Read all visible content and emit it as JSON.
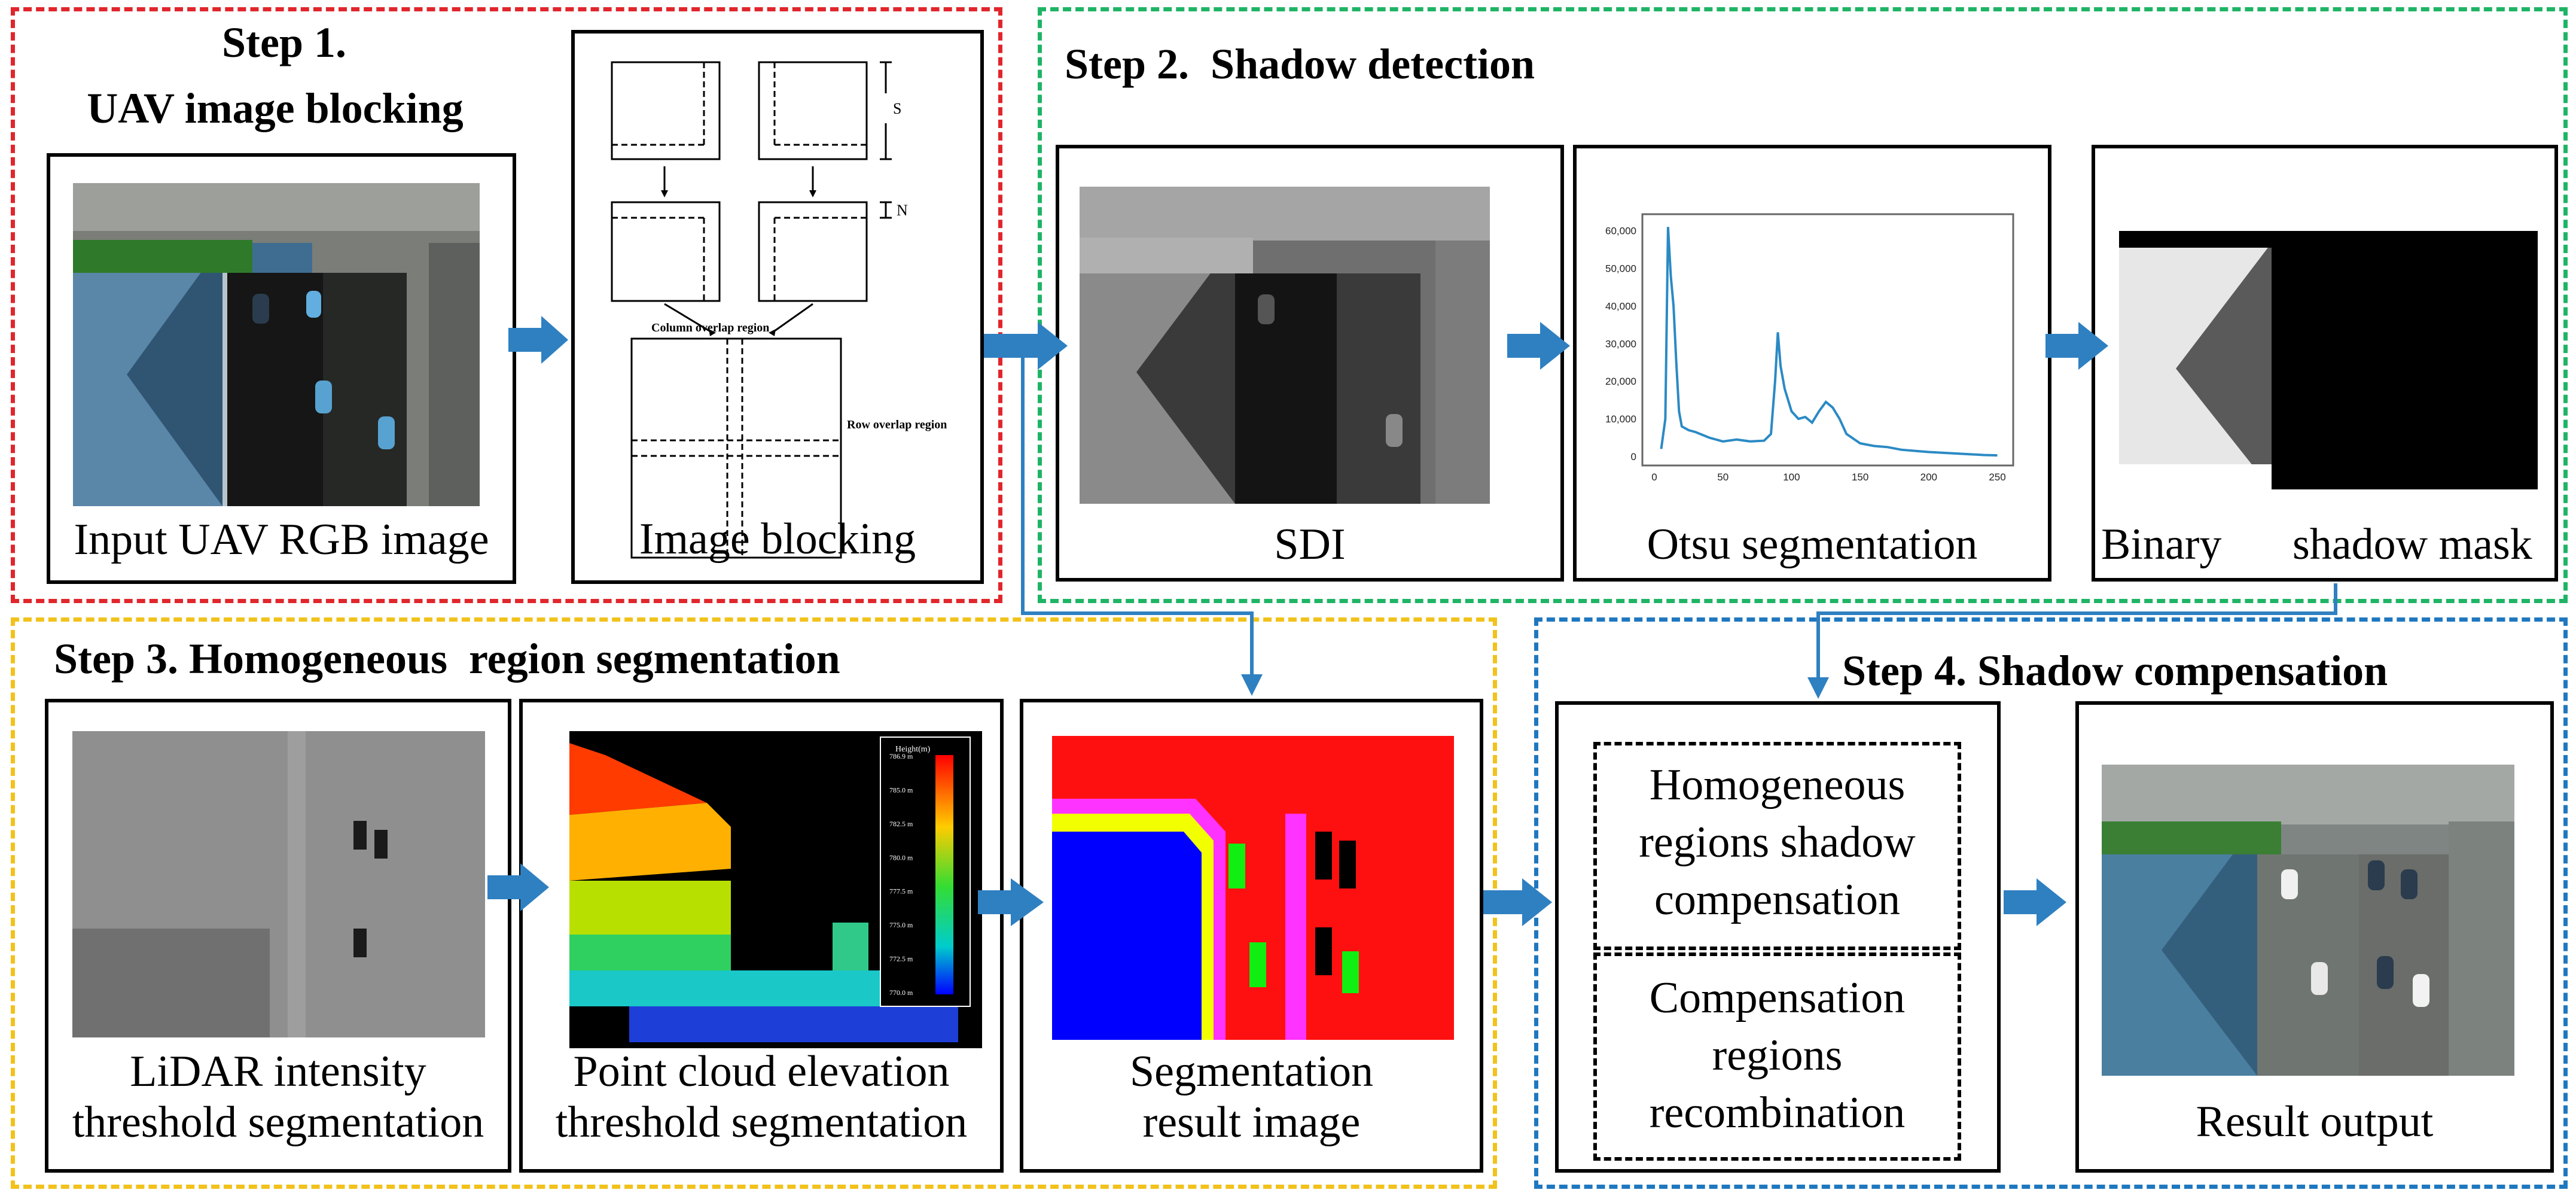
{
  "colors": {
    "step1": "#e0262c",
    "step2": "#1fb465",
    "step3": "#f2c21b",
    "step4": "#1f78bf",
    "arrow": "#2f80c1",
    "histogram": "#2b8ac4"
  },
  "step1": {
    "title_line1": "Step 1.",
    "title_line2": "UAV image blocking",
    "input_caption": "Input UAV RGB image",
    "blocking_caption": "Image blocking",
    "blocking_labels": {
      "s": "S",
      "n": "N",
      "column_overlap": "Column overlap region",
      "row_overlap": "Row overlap region"
    }
  },
  "step2": {
    "title": "Step 2.  Shadow detection",
    "sdi_caption": "SDI",
    "otsu_caption": "Otsu segmentation",
    "mask_caption_a": "Binary",
    "mask_caption_b": "shadow mask",
    "histogram": {
      "type": "line",
      "x_ticks": [
        "0",
        "50",
        "100",
        "150",
        "200",
        "250"
      ],
      "y_ticks": [
        "0",
        "10,000",
        "20,000",
        "30,000",
        "40,000",
        "50,000",
        "60,000"
      ],
      "xlim": [
        0,
        255
      ],
      "ylim": [
        0,
        62000
      ],
      "points": [
        [
          5,
          2000
        ],
        [
          8,
          10000
        ],
        [
          10,
          61000
        ],
        [
          12,
          48000
        ],
        [
          14,
          40000
        ],
        [
          16,
          25000
        ],
        [
          18,
          12000
        ],
        [
          20,
          8000
        ],
        [
          25,
          7000
        ],
        [
          30,
          6500
        ],
        [
          40,
          5000
        ],
        [
          50,
          4000
        ],
        [
          60,
          4500
        ],
        [
          70,
          4000
        ],
        [
          80,
          4200
        ],
        [
          85,
          6000
        ],
        [
          88,
          20000
        ],
        [
          90,
          33000
        ],
        [
          92,
          24000
        ],
        [
          95,
          18000
        ],
        [
          100,
          12000
        ],
        [
          105,
          10000
        ],
        [
          110,
          10500
        ],
        [
          115,
          9000
        ],
        [
          120,
          12000
        ],
        [
          125,
          14500
        ],
        [
          130,
          13000
        ],
        [
          135,
          10000
        ],
        [
          140,
          6000
        ],
        [
          150,
          3500
        ],
        [
          160,
          2800
        ],
        [
          170,
          2500
        ],
        [
          180,
          1800
        ],
        [
          190,
          1500
        ],
        [
          200,
          1200
        ],
        [
          210,
          1000
        ],
        [
          220,
          800
        ],
        [
          230,
          600
        ],
        [
          240,
          400
        ],
        [
          250,
          300
        ]
      ]
    }
  },
  "step3": {
    "title": "Step 3. Homogeneous  region segmentation",
    "lidar_caption_1": "LiDAR intensity",
    "lidar_caption_2": "threshold segmentation",
    "pc_caption_1": "Point  cloud elevation",
    "pc_caption_2": "threshold segmentation",
    "seg_caption_1": "Segmentation",
    "seg_caption_2": "result image",
    "legend": {
      "title": "Height(m)",
      "ticks": [
        "786.9 m",
        "785.0 m",
        "782.5 m",
        "780.0 m",
        "777.5 m",
        "775.0 m",
        "772.5 m",
        "770.0 m"
      ]
    }
  },
  "step4": {
    "title": "Step 4. Shadow compensation",
    "box1_1": "Homogeneous",
    "box1_2": "regions shadow",
    "box1_3": "compensation",
    "box2_1": "Compensation",
    "box2_2": "regions",
    "box2_3": "recombination",
    "result_caption": "Result output"
  }
}
